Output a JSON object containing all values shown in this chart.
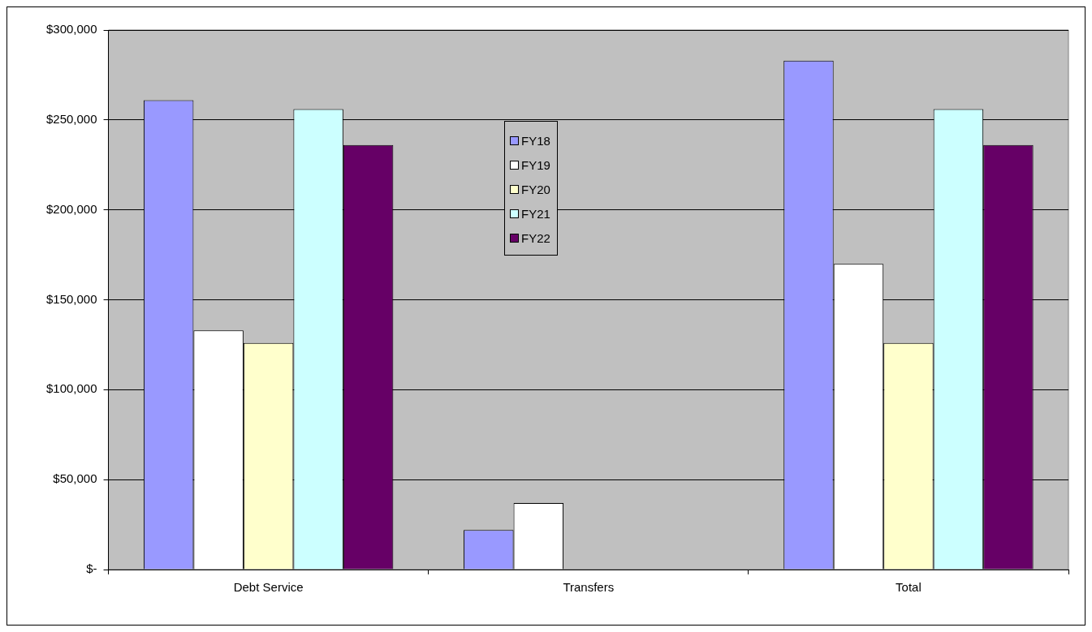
{
  "chart_data": {
    "type": "bar",
    "categories": [
      "Debt Service",
      "Transfers",
      "Total"
    ],
    "series": [
      {
        "name": "FY18",
        "color": "#9999ff",
        "values": [
          261000,
          22000,
          283000
        ]
      },
      {
        "name": "FY19",
        "color": "#ffffff",
        "values": [
          133000,
          37000,
          170000
        ]
      },
      {
        "name": "FY20",
        "color": "#ffffcc",
        "values": [
          126000,
          null,
          126000
        ]
      },
      {
        "name": "FY21",
        "color": "#ccffff",
        "values": [
          256000,
          null,
          256000
        ]
      },
      {
        "name": "FY22",
        "color": "#660066",
        "values": [
          236000,
          null,
          236000
        ]
      }
    ],
    "ylim": [
      0,
      300000
    ],
    "yticks": [
      {
        "value": 0,
        "label": "$-"
      },
      {
        "value": 50000,
        "label": "$50,000"
      },
      {
        "value": 100000,
        "label": "$100,000"
      },
      {
        "value": 150000,
        "label": "$150,000"
      },
      {
        "value": 200000,
        "label": "$200,000"
      },
      {
        "value": 250000,
        "label": "$250,000"
      },
      {
        "value": 300000,
        "label": "$300,000"
      }
    ],
    "grid": "y",
    "legend": "top"
  }
}
